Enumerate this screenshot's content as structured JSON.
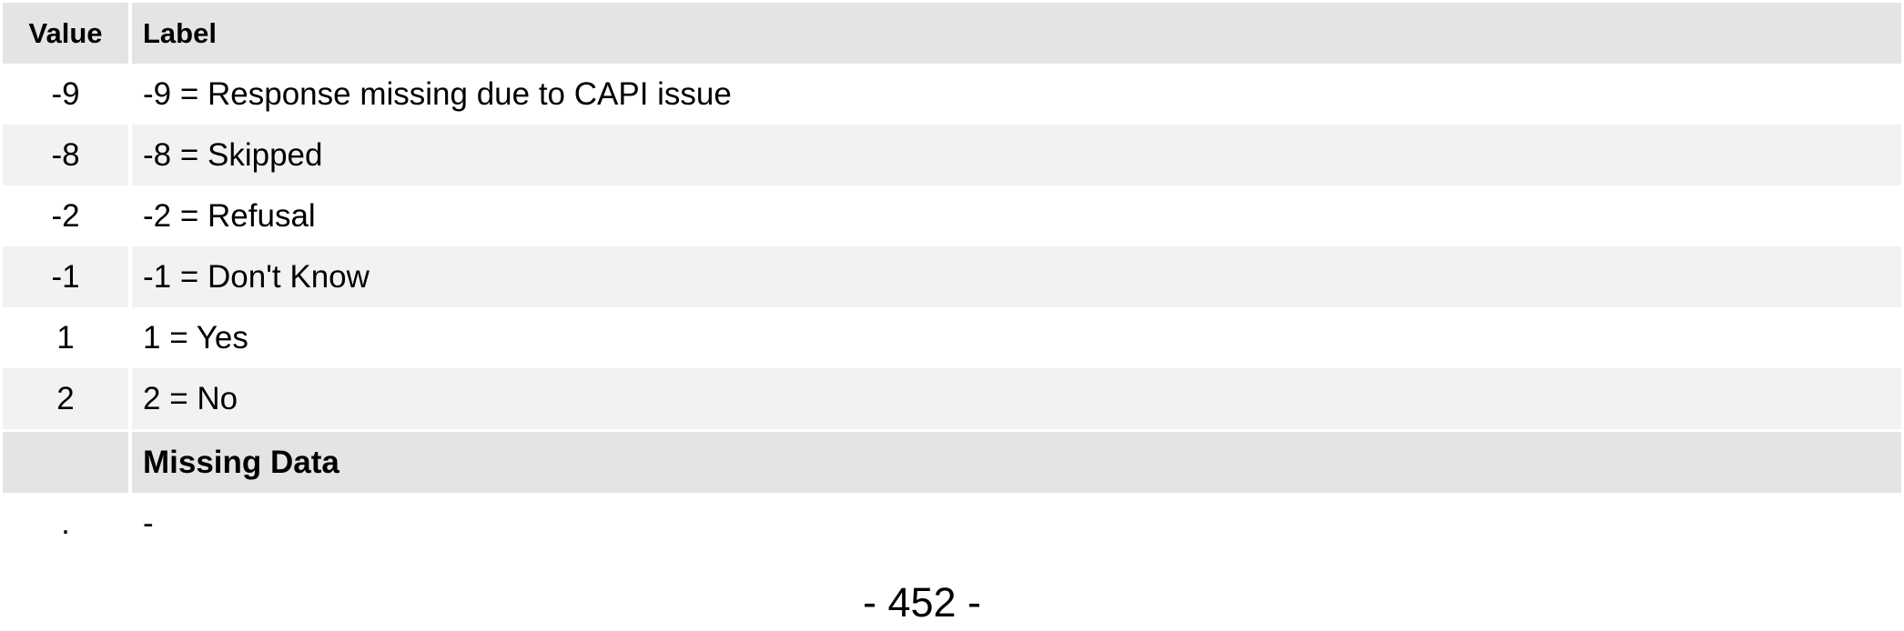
{
  "table": {
    "headers": {
      "value": "Value",
      "label": "Label"
    },
    "rows": [
      {
        "value": "-9",
        "label": "-9 = Response missing due to CAPI issue"
      },
      {
        "value": "-8",
        "label": "-8 = Skipped"
      },
      {
        "value": "-2",
        "label": "-2 = Refusal"
      },
      {
        "value": "-1",
        "label": "-1 = Don't Know"
      },
      {
        "value": "1",
        "label": "1 = Yes"
      },
      {
        "value": "2",
        "label": "2 = No"
      }
    ],
    "section": {
      "value": "",
      "label": "Missing Data"
    },
    "missing_row": {
      "value": ".",
      "label": "-"
    }
  },
  "page": {
    "number": "- 452 -"
  }
}
